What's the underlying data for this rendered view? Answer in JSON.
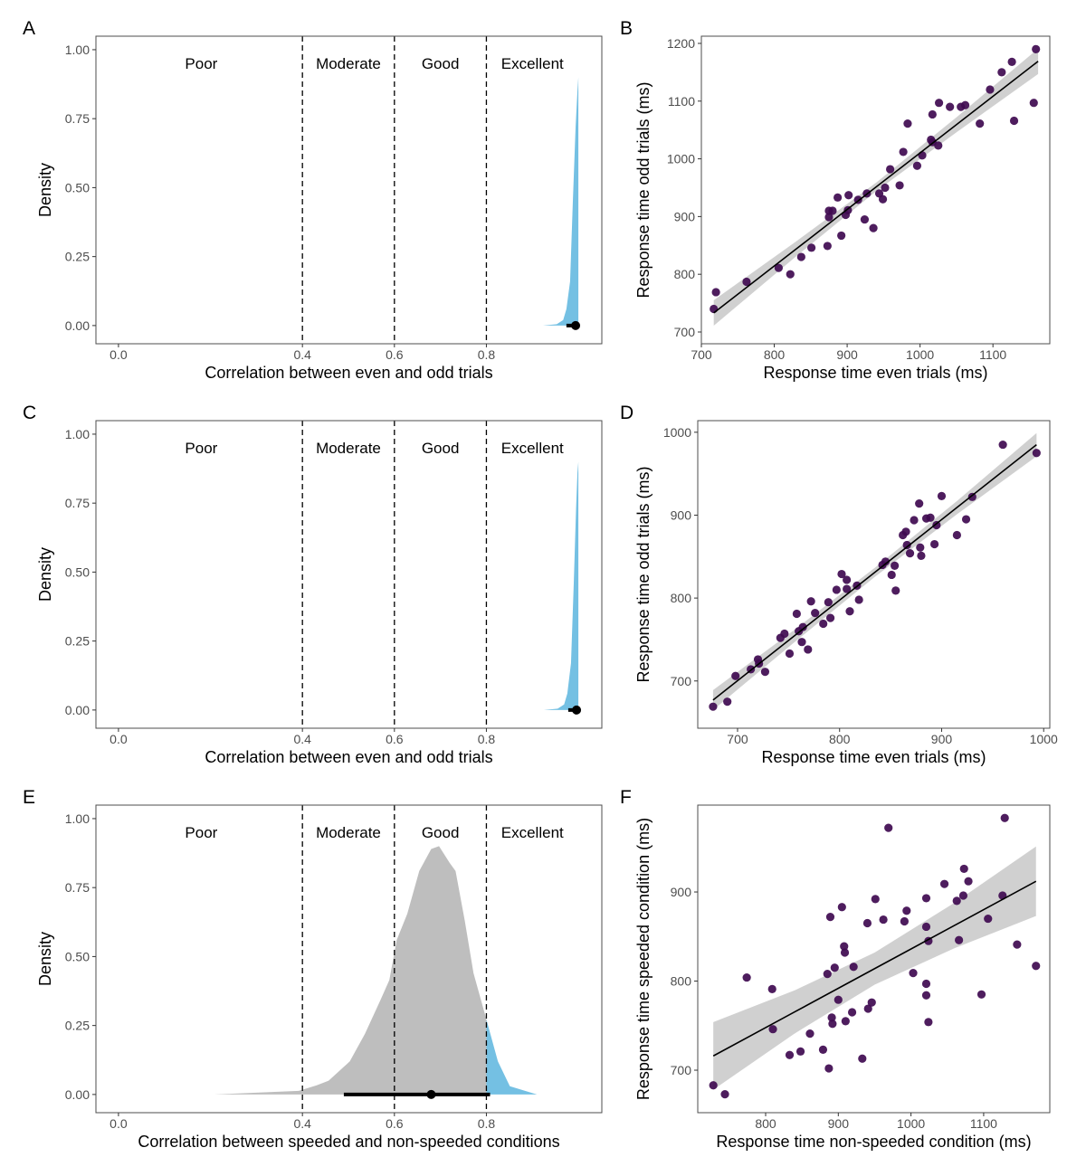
{
  "chart_data": [
    {
      "panel": "A",
      "type": "area",
      "xlabel": "Correlation between even and odd trials",
      "ylabel": "Density",
      "xlim": [
        -0.049,
        1.051
      ],
      "ylim": [
        -0.066,
        1.049
      ],
      "xticks": [
        0,
        0.4,
        0.6,
        0.8
      ],
      "xtick_labels": [
        "0.0",
        "0.4",
        "0.6",
        "0.8"
      ],
      "yticks": [
        0,
        0.25,
        0.5,
        0.75,
        1.0
      ],
      "ytick_labels": [
        "0.00",
        "0.25",
        "0.50",
        "0.75",
        "1.00"
      ],
      "thresholds": [
        0.4,
        0.6,
        0.8
      ],
      "regions": [
        {
          "label": "Poor",
          "x": 0.18
        },
        {
          "label": "Moderate",
          "x": 0.5
        },
        {
          "label": "Good",
          "x": 0.7
        },
        {
          "label": "Excellent",
          "x": 0.9
        }
      ],
      "highlight_above": 0.8,
      "density": {
        "x": [
          0.923,
          0.953,
          0.967,
          0.974,
          0.982,
          0.988,
          0.994,
          0.998,
          1.0,
          1.0
        ],
        "y": [
          0.0,
          0.005,
          0.02,
          0.06,
          0.16,
          0.45,
          0.72,
          0.85,
          0.9,
          0.0
        ]
      },
      "point_estimate": 0.994,
      "interval": [
        0.974,
        1.0
      ],
      "grid": false
    },
    {
      "panel": "B",
      "type": "scatter",
      "xlabel": "Response time even trials (ms)",
      "ylabel": "Response time odd trials (ms)",
      "xlim": [
        700,
        1178
      ],
      "ylim": [
        679.6,
        1212.5
      ],
      "xticks": [
        700,
        800,
        900,
        1000,
        1100
      ],
      "yticks": [
        700,
        800,
        900,
        1000,
        1100,
        1200
      ],
      "points": [
        [
          717,
          740
        ],
        [
          720,
          769
        ],
        [
          762,
          787
        ],
        [
          806,
          811
        ],
        [
          822,
          800
        ],
        [
          837,
          830
        ],
        [
          851,
          846
        ],
        [
          873,
          849
        ],
        [
          892,
          867
        ],
        [
          875,
          910
        ],
        [
          880,
          910
        ],
        [
          875,
          899
        ],
        [
          887,
          933
        ],
        [
          898,
          903
        ],
        [
          902,
          937
        ],
        [
          901,
          911
        ],
        [
          915,
          929
        ],
        [
          927,
          940
        ],
        [
          924,
          895
        ],
        [
          936,
          880
        ],
        [
          944,
          940
        ],
        [
          952,
          950
        ],
        [
          949,
          930
        ],
        [
          959,
          982
        ],
        [
          972,
          954
        ],
        [
          977,
          1012
        ],
        [
          983,
          1061
        ],
        [
          996,
          988
        ],
        [
          1003,
          1006
        ],
        [
          1015,
          1033
        ],
        [
          1017,
          1029
        ],
        [
          1025,
          1023
        ],
        [
          1017,
          1077
        ],
        [
          1026,
          1097
        ],
        [
          1041,
          1090
        ],
        [
          1056,
          1090
        ],
        [
          1062,
          1093
        ],
        [
          1082,
          1061
        ],
        [
          1096,
          1120
        ],
        [
          1112,
          1150
        ],
        [
          1126,
          1168
        ],
        [
          1129,
          1066
        ],
        [
          1156,
          1097
        ],
        [
          1159,
          1190
        ]
      ],
      "fit": {
        "x": [
          717,
          830,
          940,
          1050,
          1162
        ],
        "y": [
          733,
          843.7,
          951.5,
          1059.3,
          1169
        ],
        "upper": [
          755,
          857,
          959,
          1072,
          1191
        ],
        "lower": [
          711,
          831,
          944,
          1046,
          1147
        ]
      },
      "grid": false
    },
    {
      "panel": "C",
      "type": "area",
      "xlabel": "Correlation between even and odd trials",
      "ylabel": "Density",
      "xlim": [
        -0.049,
        1.051
      ],
      "ylim": [
        -0.066,
        1.049
      ],
      "xticks": [
        0,
        0.4,
        0.6,
        0.8
      ],
      "xtick_labels": [
        "0.0",
        "0.4",
        "0.6",
        "0.8"
      ],
      "yticks": [
        0,
        0.25,
        0.5,
        0.75,
        1.0
      ],
      "ytick_labels": [
        "0.00",
        "0.25",
        "0.50",
        "0.75",
        "1.00"
      ],
      "thresholds": [
        0.4,
        0.6,
        0.8
      ],
      "regions": [
        {
          "label": "Poor",
          "x": 0.18
        },
        {
          "label": "Moderate",
          "x": 0.5
        },
        {
          "label": "Good",
          "x": 0.7
        },
        {
          "label": "Excellent",
          "x": 0.9
        }
      ],
      "highlight_above": 0.8,
      "density": {
        "x": [
          0.925,
          0.955,
          0.969,
          0.976,
          0.984,
          0.99,
          0.995,
          0.998,
          1.0,
          1.0
        ],
        "y": [
          0.0,
          0.005,
          0.02,
          0.06,
          0.17,
          0.46,
          0.73,
          0.86,
          0.9,
          0.0
        ]
      },
      "point_estimate": 0.996,
      "interval": [
        0.978,
        1.0
      ],
      "grid": false
    },
    {
      "panel": "D",
      "type": "scatter",
      "xlabel": "Response time even trials (ms)",
      "ylabel": "Response time odd trials (ms)",
      "xlim": [
        661,
        1006
      ],
      "ylim": [
        643,
        1014
      ],
      "xticks": [
        700,
        800,
        900,
        1000
      ],
      "yticks": [
        700,
        800,
        900,
        1000
      ],
      "points": [
        [
          676,
          669
        ],
        [
          690,
          675
        ],
        [
          698,
          706
        ],
        [
          713,
          714
        ],
        [
          720,
          726
        ],
        [
          721,
          721
        ],
        [
          727,
          711
        ],
        [
          742,
          752
        ],
        [
          746,
          757
        ],
        [
          751,
          733
        ],
        [
          758,
          781
        ],
        [
          760,
          760
        ],
        [
          764,
          765
        ],
        [
          763,
          747
        ],
        [
          769,
          738
        ],
        [
          772,
          796
        ],
        [
          776,
          782
        ],
        [
          784,
          769
        ],
        [
          789,
          795
        ],
        [
          791,
          776
        ],
        [
          797,
          810
        ],
        [
          802,
          829
        ],
        [
          807,
          822
        ],
        [
          807,
          811
        ],
        [
          810,
          784
        ],
        [
          817,
          815
        ],
        [
          819,
          798
        ],
        [
          842,
          840
        ],
        [
          845,
          844
        ],
        [
          851,
          828
        ],
        [
          854,
          839
        ],
        [
          855,
          809
        ],
        [
          862,
          876
        ],
        [
          865,
          880
        ],
        [
          866,
          864
        ],
        [
          869,
          854
        ],
        [
          873,
          894
        ],
        [
          878,
          914
        ],
        [
          879,
          861
        ],
        [
          880,
          851
        ],
        [
          885,
          896
        ],
        [
          889,
          897
        ],
        [
          893,
          865
        ],
        [
          895,
          888
        ],
        [
          900,
          923
        ],
        [
          915,
          876
        ],
        [
          924,
          895
        ],
        [
          930,
          922
        ],
        [
          960,
          985
        ],
        [
          993,
          975
        ]
      ],
      "fit": {
        "x": [
          676,
          755,
          835,
          915,
          993
        ],
        "y": [
          677,
          753.8,
          831.5,
          909.2,
          985
        ],
        "upper": [
          689,
          761,
          837,
          917,
          999
        ],
        "lower": [
          665,
          746,
          826,
          901,
          971
        ]
      },
      "grid": false
    },
    {
      "panel": "E",
      "type": "area",
      "xlabel": "Correlation between speeded and non-speeded conditions",
      "ylabel": "Density",
      "xlim": [
        -0.049,
        1.051
      ],
      "ylim": [
        -0.066,
        1.049
      ],
      "xticks": [
        0,
        0.4,
        0.6,
        0.8
      ],
      "xtick_labels": [
        "0.0",
        "0.4",
        "0.6",
        "0.8"
      ],
      "yticks": [
        0,
        0.25,
        0.5,
        0.75,
        1.0
      ],
      "ytick_labels": [
        "0.00",
        "0.25",
        "0.50",
        "0.75",
        "1.00"
      ],
      "thresholds": [
        0.4,
        0.6,
        0.8
      ],
      "regions": [
        {
          "label": "Poor",
          "x": 0.18
        },
        {
          "label": "Moderate",
          "x": 0.5
        },
        {
          "label": "Good",
          "x": 0.7
        },
        {
          "label": "Excellent",
          "x": 0.9
        }
      ],
      "highlight_above": 0.8,
      "density": {
        "x": [
          0.208,
          0.392,
          0.431,
          0.457,
          0.503,
          0.536,
          0.569,
          0.589,
          0.605,
          0.628,
          0.654,
          0.68,
          0.697,
          0.72,
          0.733,
          0.753,
          0.772,
          0.802,
          0.825,
          0.851,
          0.91
        ],
        "y": [
          0.0,
          0.013,
          0.033,
          0.05,
          0.12,
          0.22,
          0.34,
          0.415,
          0.56,
          0.655,
          0.81,
          0.89,
          0.9,
          0.84,
          0.81,
          0.63,
          0.44,
          0.26,
          0.12,
          0.03,
          0.0
        ]
      },
      "point_estimate": 0.68,
      "interval": [
        0.49,
        0.808
      ],
      "grid": false
    },
    {
      "panel": "F",
      "type": "scatter",
      "xlabel": "Response time non-speeded condition (ms)",
      "ylabel": "Response time speeded condition (ms)",
      "xlim": [
        706.6,
        1191
      ],
      "ylim": [
        652.3,
        997.5
      ],
      "xticks": [
        800,
        900,
        1000,
        1100
      ],
      "yticks": [
        700,
        800,
        900
      ],
      "points": [
        [
          728,
          683
        ],
        [
          744,
          673
        ],
        [
          774,
          804
        ],
        [
          809,
          791
        ],
        [
          810,
          746
        ],
        [
          833,
          717
        ],
        [
          848,
          721
        ],
        [
          861,
          741
        ],
        [
          879,
          723
        ],
        [
          887,
          702
        ],
        [
          885,
          808
        ],
        [
          889,
          872
        ],
        [
          891,
          759
        ],
        [
          892,
          752
        ],
        [
          895,
          815
        ],
        [
          900,
          779
        ],
        [
          905,
          883
        ],
        [
          908,
          839
        ],
        [
          909,
          832
        ],
        [
          910,
          755
        ],
        [
          919,
          765
        ],
        [
          921,
          816
        ],
        [
          933,
          713
        ],
        [
          940,
          865
        ],
        [
          941,
          769
        ],
        [
          946,
          776
        ],
        [
          951,
          892
        ],
        [
          962,
          869
        ],
        [
          969,
          972
        ],
        [
          991,
          867
        ],
        [
          994,
          879
        ],
        [
          1003,
          809
        ],
        [
          1021,
          893
        ],
        [
          1021,
          797
        ],
        [
          1021,
          784
        ],
        [
          1021,
          861
        ],
        [
          1024,
          754
        ],
        [
          1024,
          845
        ],
        [
          1046,
          909
        ],
        [
          1063,
          890
        ],
        [
          1066,
          846
        ],
        [
          1072,
          896
        ],
        [
          1073,
          926
        ],
        [
          1079,
          912
        ],
        [
          1097,
          785
        ],
        [
          1106,
          870
        ],
        [
          1126,
          896
        ],
        [
          1129,
          983
        ],
        [
          1146,
          841
        ],
        [
          1172,
          817
        ]
      ],
      "fit": {
        "x": [
          728,
          840,
          950,
          1060,
          1172
        ],
        "y": [
          716,
          765.4,
          814,
          862.5,
          912
        ],
        "upper": [
          754,
          789.6,
          832,
          888,
          951
        ],
        "lower": [
          678,
          741.2,
          796,
          837,
          873
        ]
      },
      "grid": false
    }
  ],
  "colors": {
    "excellent_fill": "#74c0e3",
    "density_fill": "#bebebe",
    "point": "#3f0a50",
    "fit_line": "#000000",
    "ci_band": "#c8c8c8"
  }
}
